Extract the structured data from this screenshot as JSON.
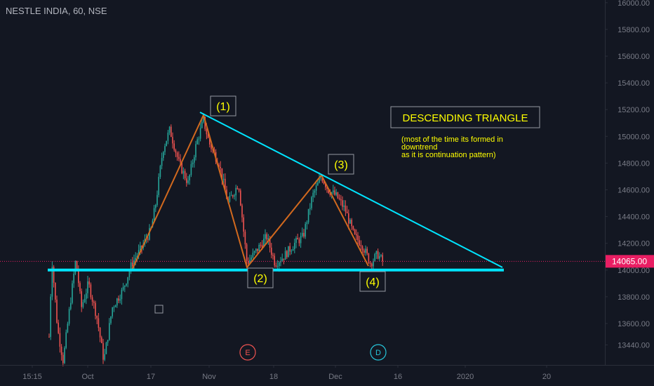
{
  "header": {
    "symbol": "NESTLE INDIA, 60, NSE"
  },
  "price_tag": {
    "value": "14065.00",
    "color": "#e91e63"
  },
  "colors": {
    "background": "#131722",
    "up_candle": "#26a69a",
    "down_candle": "#ef5350",
    "trendline": "#00e5ff",
    "zigzag": "#d2691e",
    "annotation_text": "#ffff00",
    "axis_text": "#787b86"
  },
  "chart_data": {
    "type": "candlestick",
    "yaxis": {
      "ticks": [
        "16000.00",
        "15800.00",
        "15600.00",
        "15400.00",
        "15200.00",
        "15000.00",
        "14800.00",
        "14600.00",
        "14400.00",
        "14200.00",
        "14000.00",
        "13800.00",
        "13600.00",
        "13440.00"
      ],
      "tick_values": [
        16000,
        15800,
        15600,
        15400,
        15200,
        15000,
        14800,
        14600,
        14400,
        14200,
        14000,
        13800,
        13600,
        13440
      ],
      "range": [
        13290,
        16020
      ]
    },
    "xaxis": {
      "ticks": [
        "15:15",
        "Oct",
        "17",
        "Nov",
        "18",
        "Dec",
        "16",
        "2020",
        "20"
      ]
    },
    "pattern_points": [
      {
        "label": "(1)",
        "price": 15170
      },
      {
        "label": "(2)",
        "price": 14025
      },
      {
        "label": "(3)",
        "price": 14710
      },
      {
        "label": "(4)",
        "price": 14020
      }
    ],
    "support_level": 14000,
    "last_price": 14065,
    "annotations": {
      "title": "DESCENDING TRIANGLE",
      "note_lines": [
        "(most of the time its formed in",
        "downtrend",
        "as it is continuation pattern)"
      ]
    },
    "event_markers": [
      {
        "letter": "E",
        "color": "#ef5350"
      },
      {
        "letter": "D",
        "color": "#26c6da"
      }
    ]
  }
}
